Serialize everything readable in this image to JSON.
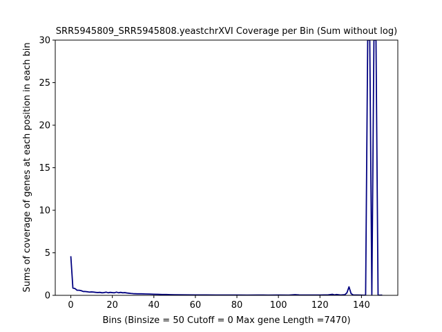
{
  "chart_data": {
    "type": "line",
    "title": "SRR5945809_SRR5945808.yeastchrXVI Coverage per Bin (Sum without log)",
    "xlabel": "Bins  (Binsize = 50 Cutoff = 0 Max gene Length =7470)",
    "ylabel": "Sums of coverage of genes at each position in each bin",
    "xlim": [
      -7.5,
      157.5
    ],
    "ylim": [
      0,
      30
    ],
    "xticks": [
      0,
      20,
      40,
      60,
      80,
      100,
      120,
      140
    ],
    "yticks": [
      0,
      5,
      10,
      15,
      20,
      25,
      30
    ],
    "grid": false,
    "line_color": "#000080",
    "series": [
      {
        "x": [
          0,
          1,
          2,
          3,
          4,
          5,
          6,
          7,
          8,
          9,
          10,
          11,
          12,
          13,
          14,
          15,
          16,
          17,
          18,
          19,
          20,
          21,
          22,
          23,
          24,
          25,
          26,
          27,
          28,
          29,
          30,
          32,
          34,
          36,
          38,
          40,
          42,
          44,
          46,
          48,
          50,
          55,
          60,
          65,
          70,
          75,
          80,
          85,
          90,
          95,
          100,
          105,
          108,
          110,
          115,
          120,
          124,
          126,
          127,
          128,
          130,
          132,
          133,
          134,
          135,
          136,
          138,
          140,
          141,
          142,
          143,
          144,
          145,
          146,
          147,
          148,
          149,
          150
        ],
        "y": [
          4.6,
          0.85,
          0.8,
          0.6,
          0.6,
          0.55,
          0.45,
          0.45,
          0.42,
          0.38,
          0.4,
          0.38,
          0.35,
          0.33,
          0.35,
          0.3,
          0.32,
          0.38,
          0.3,
          0.35,
          0.32,
          0.3,
          0.38,
          0.3,
          0.35,
          0.3,
          0.32,
          0.28,
          0.25,
          0.22,
          0.2,
          0.18,
          0.18,
          0.16,
          0.15,
          0.13,
          0.12,
          0.1,
          0.1,
          0.08,
          0.07,
          0.06,
          0.05,
          0.05,
          0.04,
          0.04,
          0.04,
          0.03,
          0.04,
          0.03,
          0.04,
          0.03,
          0.08,
          0.05,
          0.04,
          0.04,
          0.06,
          0.12,
          0.05,
          0.1,
          0.04,
          0.08,
          0.3,
          1.0,
          0.2,
          0.05,
          0.04,
          0.03,
          0.02,
          0.02,
          30,
          30,
          0.02,
          30,
          30,
          0.02,
          0.02,
          0.03
        ]
      }
    ]
  }
}
